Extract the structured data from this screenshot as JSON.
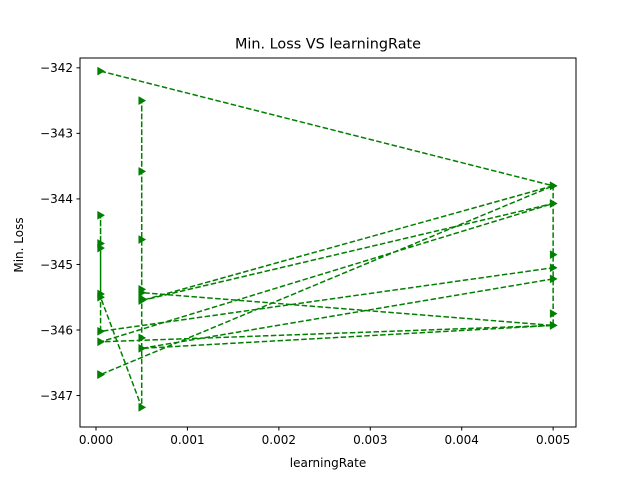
{
  "chart_data": {
    "type": "line",
    "title": "Min. Loss VS learningRate",
    "xlabel": "learningRate",
    "ylabel": "Min. Loss",
    "xlim": [
      -0.000175,
      0.00525
    ],
    "ylim": [
      -347.48,
      -341.85
    ],
    "xticks": [
      0.0,
      0.001,
      0.002,
      0.003,
      0.004,
      0.005
    ],
    "xtick_labels": [
      "0.000",
      "0.001",
      "0.002",
      "0.003",
      "0.004",
      "0.005"
    ],
    "yticks": [
      -347,
      -346,
      -345,
      -344,
      -343,
      -342
    ],
    "ytick_labels": [
      "−347",
      "−346",
      "−345",
      "−344",
      "−343",
      "−342"
    ],
    "grid": false,
    "series": [
      {
        "color": "#008000",
        "line_style": "dashed",
        "marker": "triangle-right",
        "x": [
          5e-05,
          0.005,
          0.005,
          0.005,
          0.005,
          0.005,
          0.0005,
          0.0005,
          0.0005,
          0.0005,
          0.0005,
          0.0005,
          0.0005,
          0.0005,
          5e-05,
          5e-05,
          5e-05,
          5e-05,
          5e-05,
          5e-05,
          0.005,
          0.005,
          0.0005,
          0.005,
          5e-05,
          0.005,
          0.0005,
          0.005,
          5e-05,
          5e-05
        ],
        "y": [
          -342.05,
          -343.8,
          -344.07,
          -344.85,
          -345.75,
          -345.93,
          -345.43,
          -344.62,
          -343.58,
          -342.5,
          -345.38,
          -345.52,
          -346.12,
          -347.18,
          -345.5,
          -344.25,
          -344.68,
          -345.45,
          -344.75,
          -346.02,
          -345.05,
          -345.22,
          -346.28,
          -345.93,
          -346.18,
          -344.07,
          -345.55,
          -343.8,
          -346.68,
          -346.68
        ]
      }
    ]
  }
}
